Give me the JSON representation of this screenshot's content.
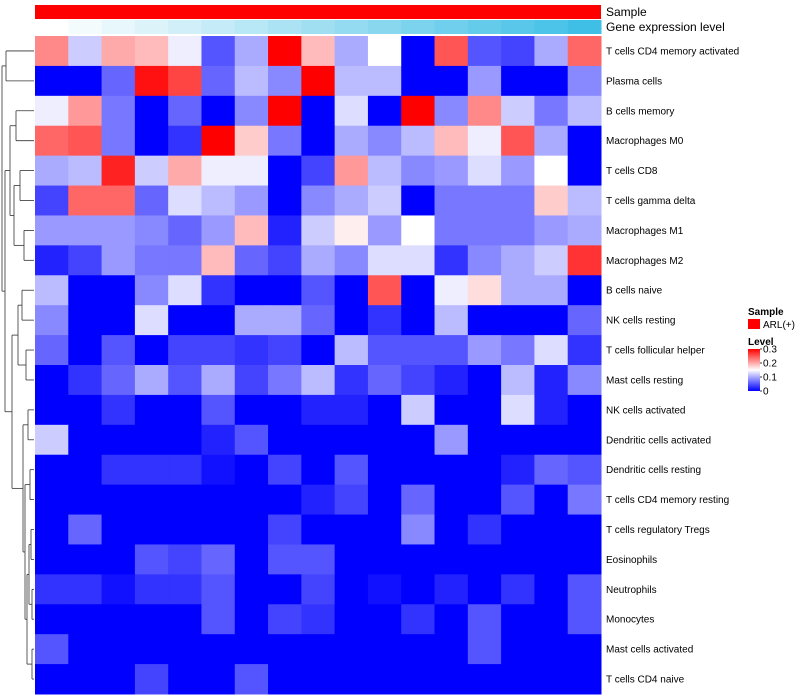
{
  "chart_data": {
    "type": "heatmap",
    "title": "",
    "xlabel": "",
    "ylabel": "",
    "rows": [
      "T cells CD4 memory activated",
      "Plasma cells",
      "B cells memory",
      "Macrophages M0",
      "T cells CD8",
      "T cells gamma delta",
      "Macrophages M1",
      "Macrophages M2",
      "B cells naive",
      "NK cells resting",
      "T cells follicular helper",
      "Mast cells resting",
      "NK cells activated",
      "Dendritic cells activated",
      "Dendritic cells resting",
      "T cells CD4 memory resting",
      "T cells regulatory  Tregs",
      "Eosinophils",
      "Neutrophils",
      "Monocytes",
      "Mast cells activated",
      "T cells CD4 naive"
    ],
    "values": [
      [
        0.22,
        0.12,
        0.2,
        0.19,
        0.14,
        0.05,
        0.1,
        0.3,
        0.19,
        0.1,
        0.15,
        0.0,
        0.25,
        0.05,
        0.04,
        0.1,
        0.24
      ],
      [
        0.0,
        0.0,
        0.06,
        0.29,
        0.26,
        0.06,
        0.11,
        0.08,
        0.3,
        0.11,
        0.11,
        0.0,
        0.0,
        0.09,
        0.0,
        0.0,
        0.08
      ],
      [
        0.14,
        0.21,
        0.07,
        0.0,
        0.06,
        0.0,
        0.08,
        0.3,
        0.0,
        0.13,
        0.0,
        0.3,
        0.08,
        0.22,
        0.12,
        0.07,
        0.11
      ],
      [
        0.24,
        0.25,
        0.07,
        0.0,
        0.03,
        0.3,
        0.18,
        0.07,
        0.0,
        0.1,
        0.08,
        0.11,
        0.19,
        0.14,
        0.25,
        0.1,
        0.0
      ],
      [
        0.1,
        0.11,
        0.28,
        0.12,
        0.2,
        0.14,
        0.14,
        0.0,
        0.04,
        0.21,
        0.11,
        0.08,
        0.09,
        0.13,
        0.09,
        0.15,
        0.0
      ],
      [
        0.04,
        0.24,
        0.24,
        0.06,
        0.13,
        0.11,
        0.09,
        0.0,
        0.08,
        0.1,
        0.12,
        0.0,
        0.07,
        0.07,
        0.07,
        0.18,
        0.11
      ],
      [
        0.09,
        0.09,
        0.09,
        0.08,
        0.06,
        0.09,
        0.19,
        0.02,
        0.12,
        0.16,
        0.09,
        0.15,
        0.07,
        0.07,
        0.07,
        0.09,
        0.1
      ],
      [
        0.02,
        0.04,
        0.09,
        0.07,
        0.07,
        0.19,
        0.06,
        0.04,
        0.1,
        0.08,
        0.13,
        0.13,
        0.03,
        0.08,
        0.1,
        0.12,
        0.27
      ],
      [
        0.11,
        0.0,
        0.0,
        0.08,
        0.13,
        0.03,
        0.0,
        0.0,
        0.05,
        0.0,
        0.25,
        0.0,
        0.14,
        0.17,
        0.1,
        0.1,
        0.0
      ],
      [
        0.08,
        0.0,
        0.0,
        0.13,
        0.0,
        0.0,
        0.1,
        0.1,
        0.06,
        0.0,
        0.03,
        0.0,
        0.11,
        0.0,
        0.0,
        0.0,
        0.06
      ],
      [
        0.06,
        0.0,
        0.05,
        0.0,
        0.04,
        0.04,
        0.03,
        0.04,
        0.0,
        0.11,
        0.05,
        0.05,
        0.05,
        0.09,
        0.07,
        0.13,
        0.03
      ],
      [
        0.0,
        0.03,
        0.06,
        0.1,
        0.05,
        0.1,
        0.04,
        0.07,
        0.11,
        0.03,
        0.06,
        0.04,
        0.02,
        0.0,
        0.11,
        0.02,
        0.08
      ],
      [
        0.0,
        0.0,
        0.03,
        0.0,
        0.0,
        0.05,
        0.0,
        0.0,
        0.02,
        0.02,
        0.0,
        0.12,
        0.0,
        0.0,
        0.13,
        0.02,
        0.0
      ],
      [
        0.12,
        0.0,
        0.0,
        0.0,
        0.0,
        0.02,
        0.05,
        0.0,
        0.0,
        0.0,
        0.0,
        0.0,
        0.09,
        0.0,
        0.0,
        0.0,
        0.0
      ],
      [
        0.0,
        0.0,
        0.03,
        0.03,
        0.03,
        0.01,
        0.0,
        0.04,
        0.0,
        0.05,
        0.0,
        0.0,
        0.0,
        0.0,
        0.02,
        0.06,
        0.05
      ],
      [
        0.0,
        0.0,
        0.0,
        0.0,
        0.0,
        0.0,
        0.0,
        0.0,
        0.02,
        0.04,
        0.0,
        0.06,
        0.0,
        0.0,
        0.05,
        0.0,
        0.07
      ],
      [
        0.0,
        0.06,
        0.0,
        0.0,
        0.0,
        0.0,
        0.0,
        0.04,
        0.0,
        0.0,
        0.0,
        0.08,
        0.0,
        0.03,
        0.0,
        0.0,
        0.0
      ],
      [
        0.0,
        0.0,
        0.0,
        0.05,
        0.04,
        0.06,
        0.0,
        0.05,
        0.05,
        0.0,
        0.0,
        0.0,
        0.0,
        0.0,
        0.0,
        0.0,
        0.0
      ],
      [
        0.03,
        0.03,
        0.01,
        0.03,
        0.03,
        0.05,
        0.0,
        0.0,
        0.04,
        0.0,
        0.01,
        0.0,
        0.02,
        0.0,
        0.03,
        0.0,
        0.05
      ],
      [
        0.0,
        0.0,
        0.0,
        0.0,
        0.0,
        0.05,
        0.0,
        0.04,
        0.03,
        0.0,
        0.0,
        0.03,
        0.0,
        0.05,
        0.0,
        0.0,
        0.05
      ],
      [
        0.05,
        0.0,
        0.0,
        0.0,
        0.0,
        0.0,
        0.0,
        0.0,
        0.0,
        0.0,
        0.0,
        0.0,
        0.0,
        0.05,
        0.0,
        0.0,
        0.0
      ],
      [
        0.0,
        0.0,
        0.0,
        0.04,
        0.0,
        0.0,
        0.05,
        0.0,
        0.0,
        0.0,
        0.0,
        0.0,
        0.0,
        0.0,
        0.0,
        0.0,
        0.0
      ]
    ],
    "annotations": [
      {
        "label": "Sample",
        "color": "#ff0000"
      },
      {
        "label": "Gene expression level",
        "colors": [
          "#ffffff",
          "#f4fbfd",
          "#e8f7fb",
          "#dcf3fa",
          "#d0eff8",
          "#c4ebf7",
          "#b8e7f5",
          "#ace3f4",
          "#a0dff2",
          "#94dbf1",
          "#88d7ef",
          "#7cd3ee",
          "#70cfec",
          "#64cbeb",
          "#58c7e9",
          "#4cc3e8",
          "#40bfe6"
        ]
      }
    ],
    "legend": {
      "sample_title": "Sample",
      "sample_entry": "ARL(+)",
      "sample_color": "#ff0000",
      "level_title": "Level",
      "level_ticks": [
        "0.3",
        "0.2",
        "0.1",
        "0"
      ],
      "level_range": [
        0,
        0.3
      ],
      "low_color": "#0000ff",
      "mid_color": "#ffffff",
      "high_color": "#ff0000",
      "placement": "right"
    }
  }
}
